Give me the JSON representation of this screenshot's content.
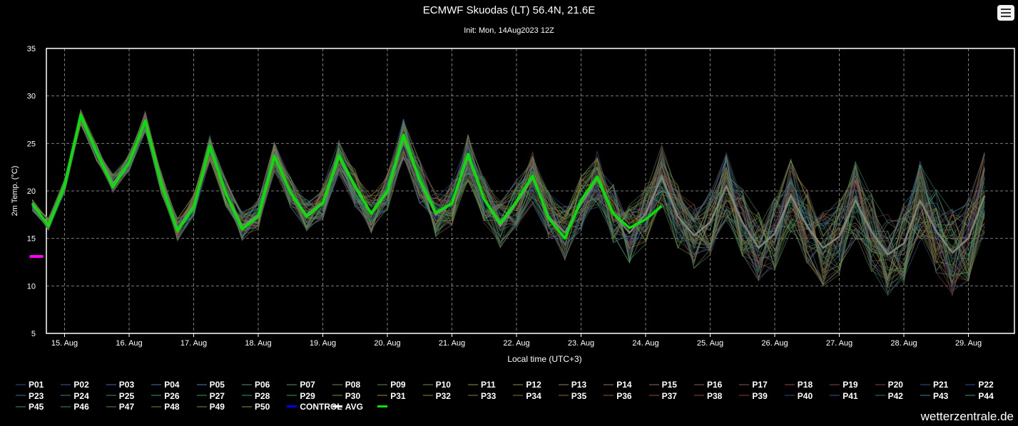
{
  "header": {
    "title": "ECMWF Skuodas (LT) 56.4N, 21.6E",
    "subtitle": "Init: Mon, 14Aug2023 12Z"
  },
  "credit": "wetterzentrale.de",
  "menu_icon": "hamburger-menu-icon",
  "colors": {
    "background": "#000000",
    "avg": "#00e600",
    "control": "#0000ff",
    "highlight": "#ff00ff",
    "grid": "#9a9a9a"
  },
  "chart_data": {
    "type": "line",
    "xlabel": "Local time (UTC+3)",
    "ylabel": "2m Temp. (°C)",
    "ylim": [
      5,
      35
    ],
    "yticks": [
      5,
      10,
      15,
      20,
      25,
      30,
      35
    ],
    "xticks": [
      "15. Aug",
      "16. Aug",
      "17. Aug",
      "18. Aug",
      "19. Aug",
      "20. Aug",
      "21. Aug",
      "22. Aug",
      "23. Aug",
      "24. Aug",
      "25. Aug",
      "26. Aug",
      "27. Aug",
      "28. Aug",
      "29. Aug"
    ],
    "grid": true,
    "legend_placement": "bottom",
    "time_step_hours": 6,
    "start": "14. Aug 21:00",
    "avg_series": {
      "name": "AVG",
      "values": [
        18.7,
        16.3,
        20.5,
        28.0,
        24.0,
        20.4,
        23.0,
        27.4,
        20.7,
        15.8,
        18.3,
        24.7,
        19.7,
        16.0,
        17.3,
        23.7,
        19.8,
        17.3,
        18.7,
        23.7,
        20.5,
        17.6,
        20.0,
        25.9,
        21.2,
        17.7,
        18.7,
        23.9,
        19.1,
        16.6,
        18.9,
        21.6,
        17.1,
        15.0,
        19.0,
        21.5,
        17.6,
        16.1,
        17.0,
        18.4
      ]
    },
    "mean_series": {
      "values": [
        18.5,
        16.5,
        20.5,
        27.8,
        24.0,
        20.8,
        23.0,
        27.3,
        20.8,
        16.0,
        18.5,
        24.5,
        19.8,
        16.3,
        17.5,
        23.5,
        19.8,
        17.5,
        18.8,
        23.5,
        20.3,
        17.6,
        19.8,
        25.5,
        21.0,
        17.5,
        18.7,
        23.5,
        19.1,
        16.3,
        18.7,
        21.3,
        17.3,
        15.6,
        18.6,
        21.2,
        17.6,
        15.6,
        17.6,
        21.5,
        17.3,
        15.3,
        16.7,
        20.5,
        16.7,
        14.0,
        15.5,
        19.5,
        16.3,
        14.0,
        15.2,
        19.0,
        15.7,
        13.3,
        14.5,
        19.0,
        15.8,
        13.5,
        15.0,
        19.5
      ]
    },
    "highlight_segment": {
      "values": [
        13.1,
        13.1
      ],
      "color": "#ff00ff"
    },
    "ensemble_members": [
      "P01",
      "P02",
      "P03",
      "P04",
      "P05",
      "P06",
      "P07",
      "P08",
      "P09",
      "P10",
      "P11",
      "P12",
      "P13",
      "P14",
      "P15",
      "P16",
      "P17",
      "P18",
      "P19",
      "P20",
      "P21",
      "P22",
      "P23",
      "P24",
      "P25",
      "P26",
      "P27",
      "P28",
      "P29",
      "P30",
      "P31",
      "P32",
      "P33",
      "P34",
      "P35",
      "P36",
      "P37",
      "P38",
      "P39",
      "P40",
      "P41",
      "P42",
      "P43",
      "P44",
      "P45",
      "P46",
      "P47",
      "P48",
      "P49",
      "P50"
    ]
  },
  "legend": {
    "items": [
      {
        "label": "P01",
        "color": "#1a2a4a"
      },
      {
        "label": "P02",
        "color": "#1e3050"
      },
      {
        "label": "P03",
        "color": "#223658"
      },
      {
        "label": "P04",
        "color": "#263a5e"
      },
      {
        "label": "P05",
        "color": "#2a3e62"
      },
      {
        "label": "P06",
        "color": "#2a4a3a"
      },
      {
        "label": "P07",
        "color": "#2a4a32"
      },
      {
        "label": "P08",
        "color": "#2c4a2a"
      },
      {
        "label": "P09",
        "color": "#2e4a24"
      },
      {
        "label": "P10",
        "color": "#3a4a20"
      },
      {
        "label": "P11",
        "color": "#4a4a22"
      },
      {
        "label": "P12",
        "color": "#4a4628"
      },
      {
        "label": "P13",
        "color": "#4a422a"
      },
      {
        "label": "P14",
        "color": "#4a3e2a"
      },
      {
        "label": "P15",
        "color": "#4a362a"
      },
      {
        "label": "P16",
        "color": "#4a302a"
      },
      {
        "label": "P17",
        "color": "#4a2a2a"
      },
      {
        "label": "P18",
        "color": "#4a2426"
      },
      {
        "label": "P19",
        "color": "#4a2024"
      },
      {
        "label": "P20",
        "color": "#4a1e26"
      },
      {
        "label": "P21",
        "color": "#1e2a4a"
      },
      {
        "label": "P22",
        "color": "#1a2650"
      },
      {
        "label": "P23",
        "color": "#1e3a4a"
      },
      {
        "label": "P24",
        "color": "#1e4048"
      },
      {
        "label": "P25",
        "color": "#1e4444"
      },
      {
        "label": "P26",
        "color": "#1e4a40"
      },
      {
        "label": "P27",
        "color": "#1e4a38"
      },
      {
        "label": "P28",
        "color": "#1e4a30"
      },
      {
        "label": "P29",
        "color": "#204a28"
      },
      {
        "label": "P30",
        "color": "#3c4a1e"
      },
      {
        "label": "P31",
        "color": "#4a481e"
      },
      {
        "label": "P32",
        "color": "#4a441e"
      },
      {
        "label": "P33",
        "color": "#4a3e1e"
      },
      {
        "label": "P34",
        "color": "#4a381e"
      },
      {
        "label": "P35",
        "color": "#4a321e"
      },
      {
        "label": "P36",
        "color": "#4a2c1e"
      },
      {
        "label": "P37",
        "color": "#4a261e"
      },
      {
        "label": "P38",
        "color": "#4a221e"
      },
      {
        "label": "P39",
        "color": "#4a1e1e"
      },
      {
        "label": "P40",
        "color": "#1e224a"
      },
      {
        "label": "P41",
        "color": "#1e2c4a"
      },
      {
        "label": "P42",
        "color": "#1e384a"
      },
      {
        "label": "P43",
        "color": "#1e444a"
      },
      {
        "label": "P44",
        "color": "#1e4a42"
      },
      {
        "label": "P45",
        "color": "#1e4a36"
      },
      {
        "label": "P46",
        "color": "#1e4a2c"
      },
      {
        "label": "P47",
        "color": "#244a1e"
      },
      {
        "label": "P48",
        "color": "#304a1e"
      },
      {
        "label": "P49",
        "color": "#3e4a1e"
      },
      {
        "label": "P50",
        "color": "#4a4a1e"
      },
      {
        "label": "CONTROL",
        "color": "#0000ff"
      },
      {
        "label": "AVG",
        "color": "#ffffff"
      },
      {
        "label": "",
        "color": "#00e600"
      }
    ]
  }
}
